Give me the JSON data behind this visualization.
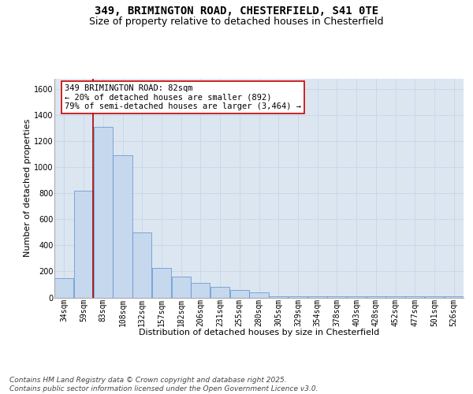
{
  "title_line1": "349, BRIMINGTON ROAD, CHESTERFIELD, S41 0TE",
  "title_line2": "Size of property relative to detached houses in Chesterfield",
  "xlabel": "Distribution of detached houses by size in Chesterfield",
  "ylabel": "Number of detached properties",
  "footer": "Contains HM Land Registry data © Crown copyright and database right 2025.\nContains public sector information licensed under the Open Government Licence v3.0.",
  "categories": [
    "34sqm",
    "59sqm",
    "83sqm",
    "108sqm",
    "132sqm",
    "157sqm",
    "182sqm",
    "206sqm",
    "231sqm",
    "255sqm",
    "280sqm",
    "305sqm",
    "329sqm",
    "354sqm",
    "378sqm",
    "403sqm",
    "428sqm",
    "452sqm",
    "477sqm",
    "501sqm",
    "526sqm"
  ],
  "values": [
    150,
    820,
    1310,
    1090,
    500,
    230,
    160,
    110,
    80,
    55,
    40,
    10,
    8,
    8,
    8,
    8,
    8,
    8,
    8,
    8,
    8
  ],
  "bar_color": "#c5d8ee",
  "bar_edge_color": "#5b8ec9",
  "grid_color": "#c8d8ea",
  "background_color": "#dce6f1",
  "annotation_text": "349 BRIMINGTON ROAD: 82sqm\n← 20% of detached houses are smaller (892)\n79% of semi-detached houses are larger (3,464) →",
  "annotation_box_facecolor": "#ffffff",
  "annotation_box_edgecolor": "#cc0000",
  "vline_x_idx": 1.5,
  "vline_color": "#aa0000",
  "ylim_max": 1680,
  "yticks": [
    0,
    200,
    400,
    600,
    800,
    1000,
    1200,
    1400,
    1600
  ],
  "title_fontsize": 10,
  "subtitle_fontsize": 9,
  "annot_fontsize": 7.5,
  "tick_fontsize": 7,
  "axis_label_fontsize": 8,
  "footer_fontsize": 6.5
}
